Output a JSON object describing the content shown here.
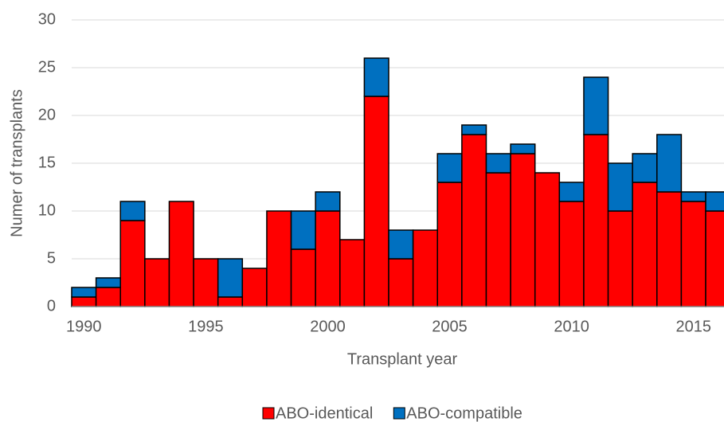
{
  "chart_data": {
    "type": "bar",
    "stacked": true,
    "x_label": "Transplant year",
    "y_label": "Numer of transplants",
    "x": [
      1990,
      1991,
      1992,
      1993,
      1994,
      1995,
      1996,
      1997,
      1998,
      1999,
      2000,
      2001,
      2002,
      2003,
      2004,
      2005,
      2006,
      2007,
      2008,
      2009,
      2010,
      2011,
      2012,
      2013,
      2014,
      2015,
      2016
    ],
    "series": [
      {
        "name": "ABO-identical",
        "color": "#ff0000",
        "values": [
          1,
          2,
          9,
          5,
          11,
          5,
          1,
          4,
          10,
          6,
          10,
          7,
          22,
          5,
          8,
          13,
          18,
          14,
          16,
          14,
          11,
          18,
          10,
          13,
          12,
          11,
          10
        ]
      },
      {
        "name": "ABO-compatible",
        "color": "#0070c0",
        "values": [
          1,
          1,
          2,
          0,
          0,
          0,
          4,
          0,
          0,
          4,
          2,
          0,
          4,
          3,
          0,
          3,
          1,
          2,
          1,
          0,
          2,
          6,
          5,
          3,
          6,
          1,
          2
        ]
      }
    ],
    "xlim": [
      1989.5,
      2016.25
    ],
    "xticks": [
      1990,
      1995,
      2000,
      2005,
      2010,
      2015
    ],
    "ylim": [
      0,
      30
    ],
    "yticks": [
      0,
      5,
      10,
      15,
      20,
      25,
      30
    ],
    "grid": true,
    "legend": "bottom"
  }
}
